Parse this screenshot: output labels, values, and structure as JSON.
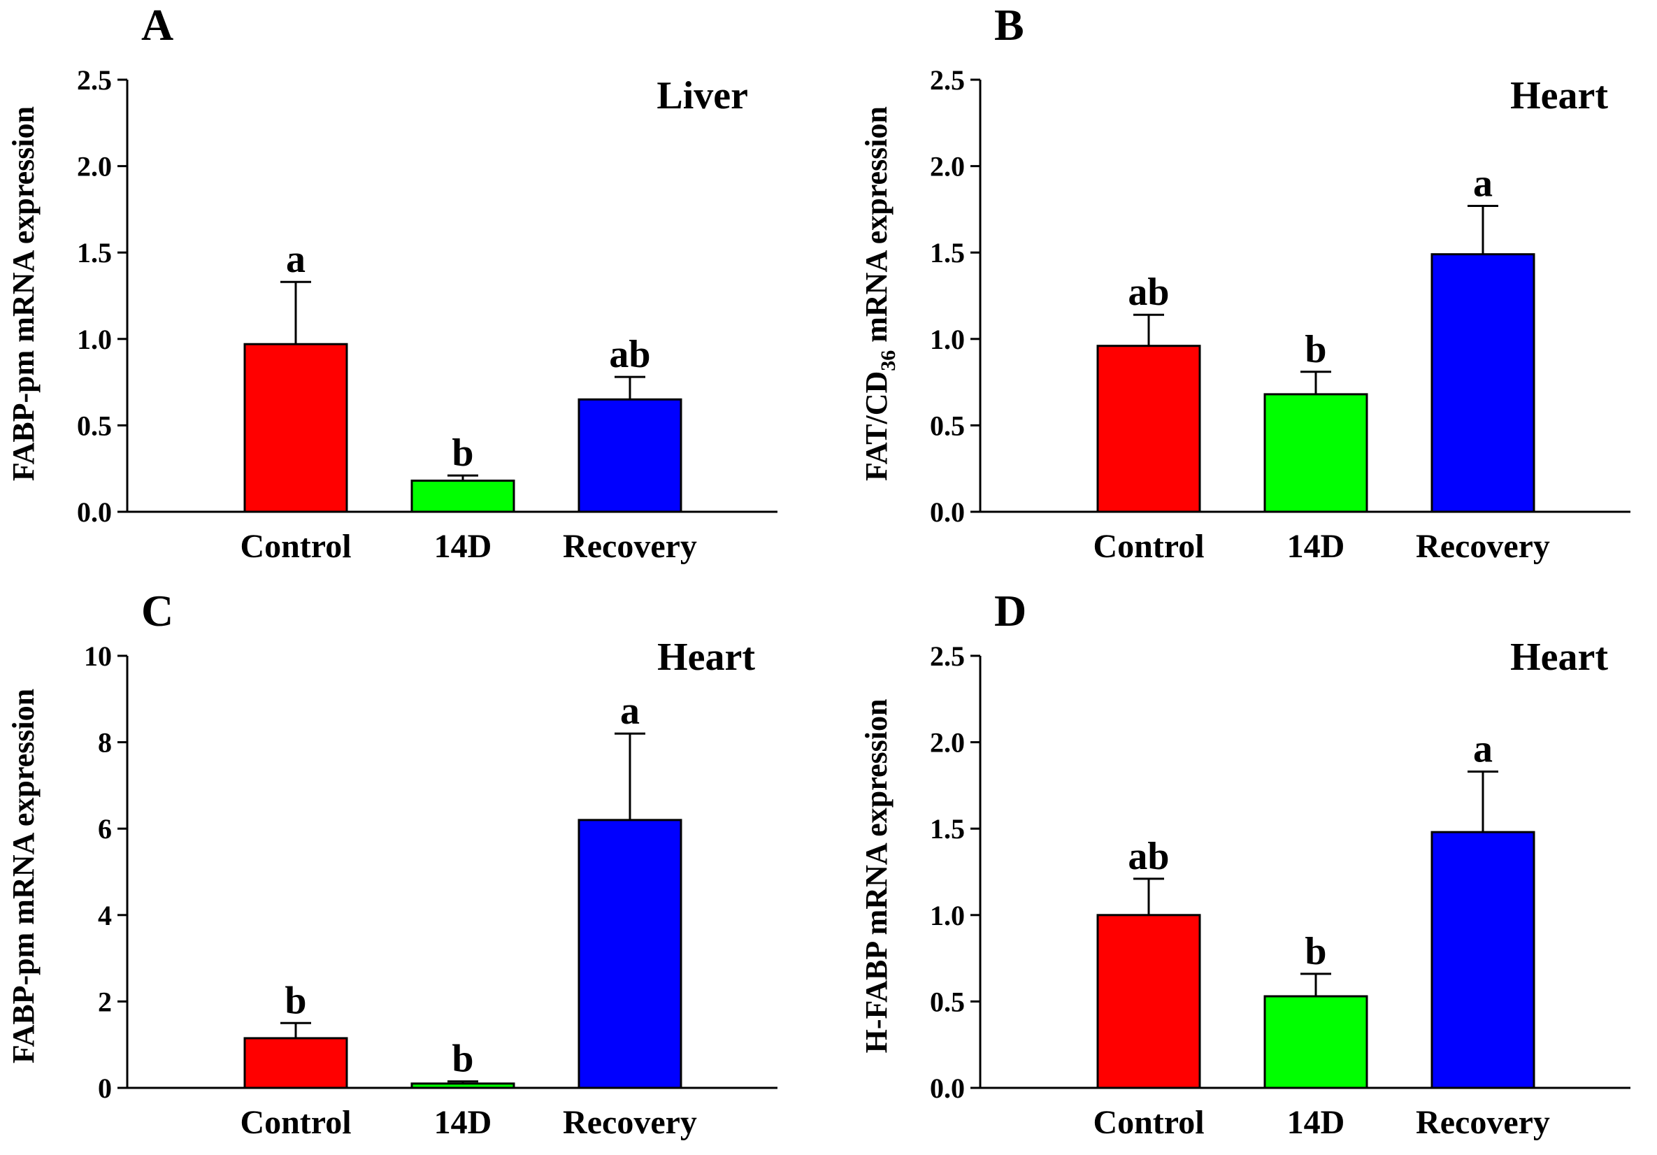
{
  "figure": {
    "panels": [
      {
        "letter": "A",
        "tissue": "Liver",
        "ylabel": "FABP-pm mRNA expression"
      },
      {
        "letter": "B",
        "tissue": "Heart",
        "ylabel_main": "FAT/CD",
        "ylabel_sub": "36",
        "ylabel_rest": " mRNA expression"
      },
      {
        "letter": "C",
        "tissue": "Heart",
        "ylabel": "FABP-pm mRNA expression"
      },
      {
        "letter": "D",
        "tissue": "Heart",
        "ylabel": "H-FABP mRNA expression"
      }
    ]
  },
  "chart_data": [
    {
      "type": "bar",
      "title": "Liver",
      "panel": "A",
      "ylabel": "FABP-pm mRNA expression",
      "xlabel": "",
      "categories": [
        "Control",
        "14D",
        "Recovery"
      ],
      "values": [
        0.97,
        0.18,
        0.65
      ],
      "errors": [
        0.36,
        0.03,
        0.13
      ],
      "significance": [
        "a",
        "b",
        "ab"
      ],
      "colors": [
        "#ff0000",
        "#00ff00",
        "#0000ff"
      ],
      "ylim": [
        0,
        2.5
      ],
      "yticks": [
        "0.0",
        "0.5",
        "1.0",
        "1.5",
        "2.0",
        "2.5"
      ],
      "grid": false
    },
    {
      "type": "bar",
      "title": "Heart",
      "panel": "B",
      "ylabel": "FAT/CD36 mRNA expression",
      "xlabel": "",
      "categories": [
        "Control",
        "14D",
        "Recovery"
      ],
      "values": [
        0.96,
        0.68,
        1.49
      ],
      "errors": [
        0.18,
        0.13,
        0.28
      ],
      "significance": [
        "ab",
        "b",
        "a"
      ],
      "colors": [
        "#ff0000",
        "#00ff00",
        "#0000ff"
      ],
      "ylim": [
        0,
        2.5
      ],
      "yticks": [
        "0.0",
        "0.5",
        "1.0",
        "1.5",
        "2.0",
        "2.5"
      ],
      "grid": false
    },
    {
      "type": "bar",
      "title": "Heart",
      "panel": "C",
      "ylabel": "FABP-pm mRNA expression",
      "xlabel": "",
      "categories": [
        "Control",
        "14D",
        "Recovery"
      ],
      "values": [
        1.15,
        0.1,
        6.2
      ],
      "errors": [
        0.35,
        0.05,
        2.0
      ],
      "significance": [
        "b",
        "b",
        "a"
      ],
      "colors": [
        "#ff0000",
        "#00ff00",
        "#0000ff"
      ],
      "ylim": [
        0,
        10
      ],
      "yticks": [
        "0",
        "2",
        "4",
        "6",
        "8",
        "10"
      ],
      "grid": false
    },
    {
      "type": "bar",
      "title": "Heart",
      "panel": "D",
      "ylabel": "H-FABP mRNA expression",
      "xlabel": "",
      "categories": [
        "Control",
        "14D",
        "Recovery"
      ],
      "values": [
        1.0,
        0.53,
        1.48
      ],
      "errors": [
        0.21,
        0.13,
        0.35
      ],
      "significance": [
        "ab",
        "b",
        "a"
      ],
      "colors": [
        "#ff0000",
        "#00ff00",
        "#0000ff"
      ],
      "ylim": [
        0,
        2.5
      ],
      "yticks": [
        "0.0",
        "0.5",
        "1.0",
        "1.5",
        "2.0",
        "2.5"
      ],
      "grid": false
    }
  ]
}
